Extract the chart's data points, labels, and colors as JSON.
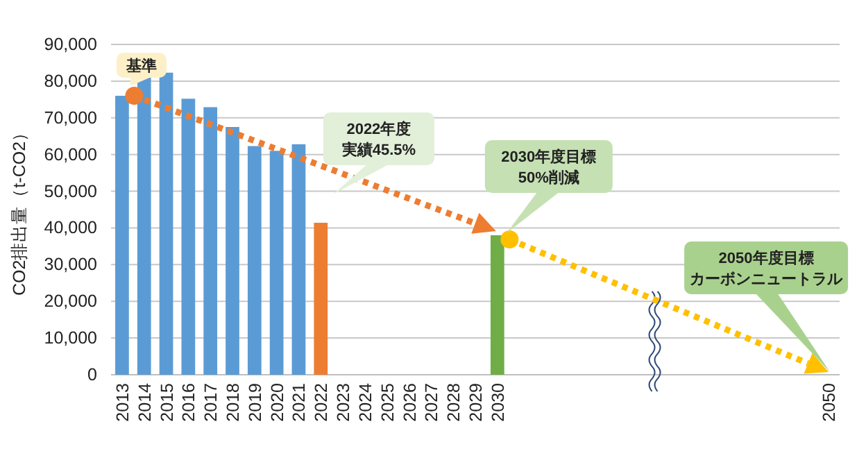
{
  "chart_data": {
    "type": "bar",
    "ylabel": "CO2排出量（t-CO2）",
    "categories": [
      "2013",
      "2014",
      "2015",
      "2016",
      "2017",
      "2018",
      "2019",
      "2020",
      "2021",
      "2022",
      "2023",
      "2024",
      "2025",
      "2026",
      "2027",
      "2028",
      "2029",
      "2030",
      null,
      null,
      null,
      null,
      null,
      null,
      null,
      null,
      null,
      null,
      null,
      null,
      null,
      null,
      "2050"
    ],
    "ylim": [
      0,
      90000
    ],
    "yticks": [
      {
        "value": 0,
        "label": "0"
      },
      {
        "value": 10000,
        "label": "10,000"
      },
      {
        "value": 20000,
        "label": "20,000"
      },
      {
        "value": 30000,
        "label": "30,000"
      },
      {
        "value": 40000,
        "label": "40,000"
      },
      {
        "value": 50000,
        "label": "50,000"
      },
      {
        "value": 60000,
        "label": "60,000"
      },
      {
        "value": 70000,
        "label": "70,000"
      },
      {
        "value": 80000,
        "label": "80,000"
      },
      {
        "value": 90000,
        "label": "90,000"
      }
    ],
    "grid": "y",
    "values": [
      76000,
      81200,
      82300,
      75200,
      72900,
      67500,
      62300,
      61000,
      62800,
      41400,
      null,
      null,
      null,
      null,
      null,
      null,
      null,
      38000,
      null,
      null,
      null,
      null,
      null,
      null,
      null,
      null,
      null,
      null,
      null,
      null,
      null,
      null,
      null
    ],
    "colors": [
      "#5b9bd5",
      "#5b9bd5",
      "#5b9bd5",
      "#5b9bd5",
      "#5b9bd5",
      "#5b9bd5",
      "#5b9bd5",
      "#5b9bd5",
      "#5b9bd5",
      "#ed7d31",
      null,
      null,
      null,
      null,
      null,
      null,
      null,
      "#70ad47",
      null,
      null,
      null,
      null,
      null,
      null,
      null,
      null,
      null,
      null,
      null,
      null,
      null,
      null,
      null
    ],
    "annotations": [
      "基準",
      "2022年度実績45.5%",
      "2030年度目標50%削減",
      "2050年度目標カーボンニュートラル"
    ]
  }
}
